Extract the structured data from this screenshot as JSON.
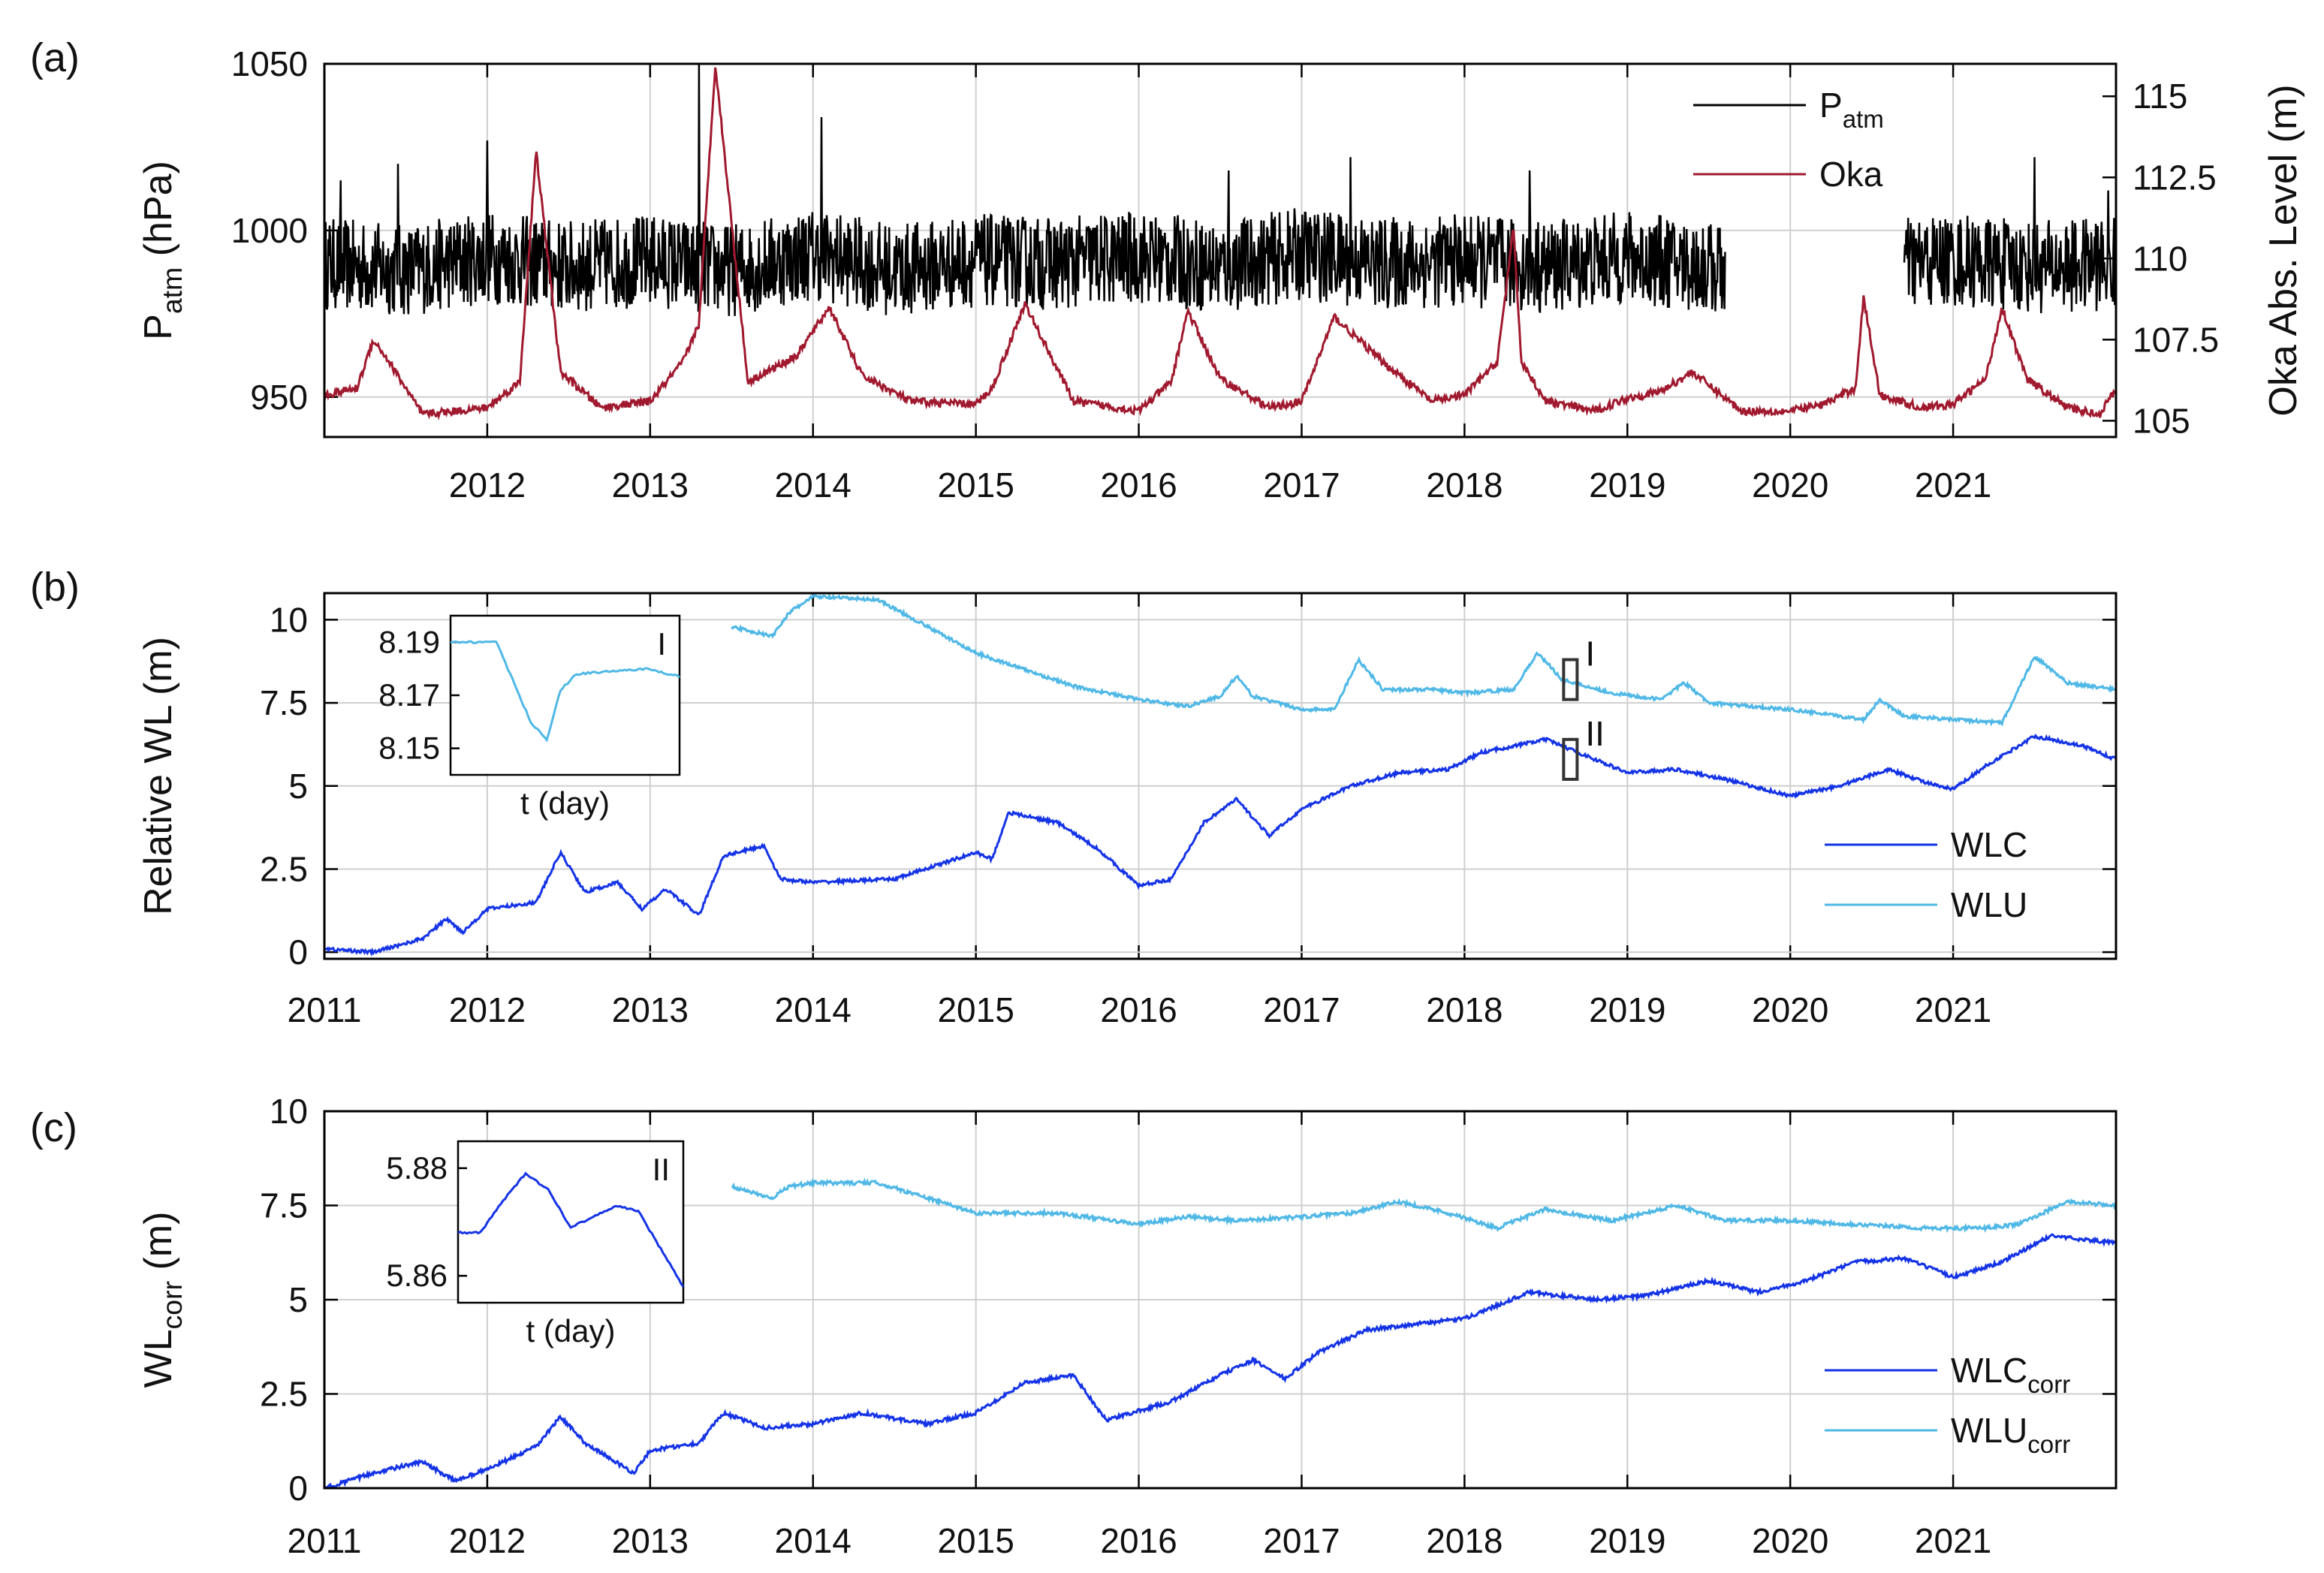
{
  "colors": {
    "p_atm": "#000000",
    "oka": "#a0192e",
    "wlc": "#1433e6",
    "wlu": "#4fb8e6",
    "grid": "#cfcfcf"
  },
  "chart_data": [
    {
      "panel": "(a)",
      "type": "line",
      "xlim": [
        2011,
        2022
      ],
      "x_ticks": [
        "2012",
        "2013",
        "2014",
        "2015",
        "2016",
        "2017",
        "2018",
        "2019",
        "2020",
        "2021"
      ],
      "ylabel_left": {
        "main": "P",
        "sub": "atm",
        "rest": " (hPa)"
      },
      "ylim_left": [
        938,
        1050
      ],
      "yticks_left": [
        "950",
        "1000",
        "1050"
      ],
      "ylabel_right": "Oka Abs. Level (m)",
      "ylim_right": [
        104.5,
        116
      ],
      "yticks_right": [
        "105",
        "107.5",
        "110",
        "112.5",
        "115"
      ],
      "legend": {
        "placement": "top-right",
        "entries": [
          {
            "main": "P",
            "sub": "atm"
          },
          {
            "main": "Oka",
            "sub": ""
          }
        ]
      },
      "series": [
        {
          "name": "Patm",
          "axis": "left",
          "kind": "noisy",
          "segments": [
            {
              "x": [
                2011.0,
                2011.5,
                2012.0,
                2012.5,
                2013.0,
                2013.5,
                2014.0,
                2014.5,
                2015.0,
                2015.5,
                2016.0,
                2016.5,
                2017.0,
                2017.5,
                2018.0,
                2018.5,
                2019.0,
                2019.6
              ],
              "y": [
                990,
                988,
                992,
                989,
                991,
                988,
                993,
                988,
                991,
                990,
                992,
                989,
                993,
                990,
                991,
                989,
                992,
                988
              ]
            },
            {
              "x": [
                2020.7,
                2021.0,
                2021.5,
                2022.0
              ],
              "y": [
                990,
                991,
                989,
                990
              ]
            }
          ],
          "noise_amplitude": 14,
          "spikes": [
            [
              2011.1,
              1015
            ],
            [
              2011.45,
              1020
            ],
            [
              2012.0,
              1027
            ],
            [
              2013.3,
              1050
            ],
            [
              2014.05,
              1034
            ],
            [
              2016.55,
              1018
            ],
            [
              2017.3,
              1022
            ],
            [
              2018.4,
              1018
            ],
            [
              2021.5,
              1022
            ],
            [
              2021.95,
              1012
            ]
          ]
        },
        {
          "name": "Oka",
          "axis": "right",
          "kind": "smooth",
          "x": [
            2011.0,
            2011.2,
            2011.3,
            2011.4,
            2011.6,
            2012.0,
            2012.2,
            2012.3,
            2012.45,
            2012.7,
            2013.0,
            2013.2,
            2013.3,
            2013.4,
            2013.6,
            2013.9,
            2014.1,
            2014.3,
            2014.6,
            2015.0,
            2015.1,
            2015.3,
            2015.6,
            2016.0,
            2016.2,
            2016.3,
            2016.5,
            2016.8,
            2017.0,
            2017.2,
            2017.5,
            2017.8,
            2018.0,
            2018.2,
            2018.3,
            2018.35,
            2018.5,
            2018.8,
            2019.0,
            2019.2,
            2019.4,
            2019.7,
            2020.0,
            2020.2,
            2020.4,
            2020.45,
            2020.55,
            2020.8,
            2021.0,
            2021.2,
            2021.3,
            2021.45,
            2021.7,
            2021.9,
            2022.0
          ],
          "y": [
            105.8,
            106.0,
            107.5,
            106.8,
            105.2,
            105.4,
            106.2,
            113.3,
            106.5,
            105.4,
            105.6,
            106.8,
            108.0,
            116.0,
            106.2,
            107.0,
            108.5,
            106.4,
            105.6,
            105.5,
            106.0,
            108.6,
            105.6,
            105.3,
            106.2,
            108.4,
            106.3,
            105.4,
            105.6,
            108.2,
            106.8,
            105.6,
            105.8,
            106.8,
            110.9,
            106.8,
            105.6,
            105.3,
            105.7,
            105.9,
            106.5,
            105.3,
            105.3,
            105.5,
            106.0,
            108.8,
            105.8,
            105.4,
            105.5,
            106.3,
            108.5,
            106.3,
            105.4,
            105.2,
            106.0
          ]
        }
      ]
    },
    {
      "panel": "(b)",
      "type": "line",
      "xlim": [
        2011,
        2022
      ],
      "x_ticks": [
        "2011",
        "2012",
        "2013",
        "2014",
        "2015",
        "2016",
        "2017",
        "2018",
        "2019",
        "2020",
        "2021"
      ],
      "ylabel": "Relative WL (m)",
      "ylim": [
        -0.2,
        10.8
      ],
      "yticks": [
        "0",
        "2.5",
        "5",
        "7.5",
        "10"
      ],
      "legend": {
        "placement": "bottom-right",
        "entries": [
          {
            "main": "WLC",
            "sub": ""
          },
          {
            "main": "WLU",
            "sub": ""
          }
        ]
      },
      "markers": [
        {
          "label": "I",
          "x": 2018.65,
          "y_low": 7.6,
          "y_high": 8.8
        },
        {
          "label": "II",
          "x": 2018.65,
          "y_low": 5.2,
          "y_high": 6.4
        }
      ],
      "inset": {
        "label": "I",
        "xlabel": "t (day)",
        "ylim": [
          8.14,
          8.2
        ],
        "yticks": [
          "8.15",
          "8.17",
          "8.19"
        ],
        "x": [
          0,
          0.1,
          0.2,
          0.25,
          0.3,
          0.35,
          0.42,
          0.48,
          0.55,
          0.7,
          0.85,
          1.0
        ],
        "y": [
          8.19,
          8.19,
          8.19,
          8.18,
          8.17,
          8.16,
          8.153,
          8.172,
          8.178,
          8.179,
          8.18,
          8.177
        ]
      },
      "series": [
        {
          "name": "WLC",
          "x": [
            2011.0,
            2011.3,
            2011.6,
            2011.75,
            2011.85,
            2012.0,
            2012.3,
            2012.45,
            2012.6,
            2012.8,
            2012.95,
            2013.1,
            2013.3,
            2013.45,
            2013.7,
            2013.8,
            2014.0,
            2014.5,
            2015.0,
            2015.1,
            2015.2,
            2015.5,
            2015.75,
            2016.0,
            2016.2,
            2016.4,
            2016.6,
            2016.8,
            2017.0,
            2017.3,
            2017.6,
            2017.9,
            2018.1,
            2018.3,
            2018.5,
            2018.8,
            2019.0,
            2019.3,
            2019.6,
            2020.0,
            2020.3,
            2020.6,
            2020.9,
            2021.0,
            2021.2,
            2021.5,
            2021.8,
            2022.0
          ],
          "y": [
            0.1,
            0.0,
            0.4,
            1.0,
            0.6,
            1.3,
            1.5,
            3.0,
            1.8,
            2.1,
            1.3,
            1.9,
            1.1,
            2.9,
            3.2,
            2.2,
            2.1,
            2.2,
            3.0,
            2.8,
            4.2,
            3.9,
            3.1,
            2.0,
            2.2,
            3.9,
            4.6,
            3.5,
            4.3,
            5.0,
            5.4,
            5.5,
            6.0,
            6.2,
            6.4,
            5.8,
            5.4,
            5.5,
            5.2,
            4.7,
            5.0,
            5.5,
            5.0,
            4.9,
            5.6,
            6.5,
            6.2,
            5.8
          ]
        },
        {
          "name": "WLU",
          "x": [
            2013.5,
            2013.75,
            2013.85,
            2014.0,
            2014.4,
            2014.7,
            2015.0,
            2015.3,
            2015.6,
            2016.0,
            2016.3,
            2016.5,
            2016.6,
            2016.7,
            2017.0,
            2017.2,
            2017.35,
            2017.5,
            2017.8,
            2018.0,
            2018.3,
            2018.45,
            2018.6,
            2018.9,
            2019.2,
            2019.35,
            2019.5,
            2020.0,
            2020.45,
            2020.55,
            2020.7,
            2021.0,
            2021.3,
            2021.5,
            2021.7,
            2022.0
          ],
          "y": [
            9.8,
            9.5,
            10.2,
            10.7,
            10.6,
            9.8,
            9.0,
            8.5,
            8.0,
            7.6,
            7.4,
            7.7,
            8.3,
            7.7,
            7.3,
            7.3,
            8.8,
            7.9,
            7.9,
            7.8,
            7.9,
            9.0,
            8.2,
            7.8,
            7.6,
            8.1,
            7.5,
            7.3,
            7.0,
            7.6,
            7.1,
            7.0,
            6.9,
            8.9,
            8.1,
            7.9
          ]
        }
      ]
    },
    {
      "panel": "(c)",
      "type": "line",
      "xlim": [
        2011,
        2022
      ],
      "x_ticks": [
        "2011",
        "2012",
        "2013",
        "2014",
        "2015",
        "2016",
        "2017",
        "2018",
        "2019",
        "2020",
        "2021"
      ],
      "ylabel": {
        "main": "WL",
        "sub": "corr",
        "rest": " (m)"
      },
      "ylim": [
        0,
        10
      ],
      "yticks": [
        "0",
        "2.5",
        "5",
        "7.5",
        "10"
      ],
      "legend": {
        "placement": "bottom-right",
        "entries": [
          {
            "main": "WLC",
            "sub": "corr"
          },
          {
            "main": "WLU",
            "sub": "corr"
          }
        ]
      },
      "inset": {
        "label": "II",
        "xlabel": "t (day)",
        "ylim": [
          5.855,
          5.885
        ],
        "yticks": [
          "5.86",
          "5.88"
        ],
        "x": [
          0,
          0.1,
          0.2,
          0.3,
          0.4,
          0.5,
          0.6,
          0.7,
          0.8,
          0.9,
          1.0
        ],
        "y": [
          5.868,
          5.868,
          5.874,
          5.879,
          5.876,
          5.869,
          5.871,
          5.873,
          5.872,
          5.865,
          5.858
        ]
      },
      "series": [
        {
          "name": "WLCcorr",
          "x": [
            2011.0,
            2011.3,
            2011.6,
            2011.8,
            2012.0,
            2012.3,
            2012.45,
            2012.6,
            2012.9,
            2013.0,
            2013.3,
            2013.45,
            2013.7,
            2014.0,
            2014.3,
            2014.7,
            2015.0,
            2015.3,
            2015.6,
            2015.8,
            2016.2,
            2016.5,
            2016.7,
            2016.9,
            2017.1,
            2017.4,
            2017.8,
            2018.0,
            2018.4,
            2018.8,
            2019.1,
            2019.5,
            2019.8,
            2020.1,
            2020.4,
            2020.7,
            2021.0,
            2021.3,
            2021.6,
            2022.0
          ],
          "y": [
            0.0,
            0.4,
            0.7,
            0.2,
            0.5,
            1.1,
            1.9,
            1.2,
            0.4,
            1.0,
            1.2,
            2.0,
            1.6,
            1.7,
            2.0,
            1.7,
            2.0,
            2.8,
            3.0,
            1.8,
            2.3,
            3.0,
            3.4,
            2.9,
            3.6,
            4.2,
            4.4,
            4.5,
            5.2,
            5.0,
            5.1,
            5.5,
            5.2,
            5.5,
            6.0,
            6.1,
            5.6,
            6.0,
            6.7,
            6.5
          ]
        },
        {
          "name": "WLUcorr",
          "x": [
            2013.5,
            2013.75,
            2013.85,
            2014.0,
            2014.4,
            2014.7,
            2015.0,
            2015.5,
            2016.0,
            2016.3,
            2016.6,
            2017.0,
            2017.3,
            2017.6,
            2017.9,
            2018.2,
            2018.5,
            2018.9,
            2019.3,
            2019.6,
            2020.0,
            2020.4,
            2020.8,
            2021.2,
            2021.4,
            2021.7,
            2022.0
          ],
          "y": [
            8.0,
            7.7,
            8.0,
            8.1,
            8.1,
            7.7,
            7.3,
            7.3,
            7.0,
            7.2,
            7.1,
            7.2,
            7.3,
            7.6,
            7.3,
            6.9,
            7.4,
            7.1,
            7.5,
            7.1,
            7.1,
            7.0,
            6.9,
            6.9,
            7.0,
            7.6,
            7.5
          ]
        }
      ]
    }
  ]
}
